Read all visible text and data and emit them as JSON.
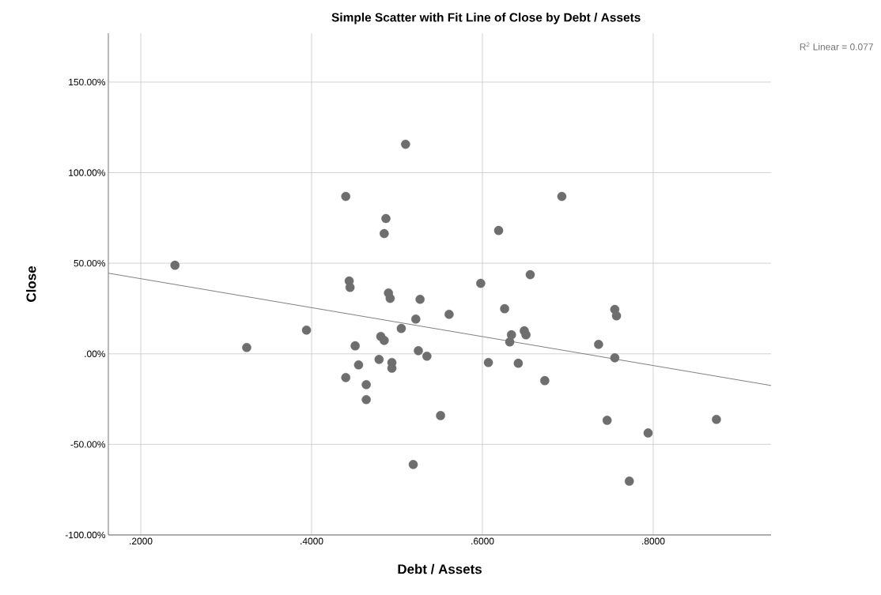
{
  "chart_data": {
    "type": "scatter",
    "title": "Simple Scatter with Fit Line of Close by Debt / Assets",
    "xlabel": "Debt / Assets",
    "ylabel": "Close",
    "annotations": [
      "R$^{2}$ Linear = 0.077"
    ],
    "xlim": [
      0.162,
      0.938
    ],
    "ylim": [
      -100,
      177
    ],
    "xticks": [
      {
        "value": 0.2,
        "label": ".2000"
      },
      {
        "value": 0.4,
        "label": ".4000"
      },
      {
        "value": 0.6,
        "label": ".6000"
      },
      {
        "value": 0.8,
        "label": ".8000"
      }
    ],
    "yticks": [
      {
        "value": -100,
        "label": "-100.00%"
      },
      {
        "value": -50,
        "label": "-50.00%"
      },
      {
        "value": 0,
        "label": ".00%"
      },
      {
        "value": 50,
        "label": "50.00%"
      },
      {
        "value": 100,
        "label": "100.00%"
      },
      {
        "value": 150,
        "label": "150.00%"
      }
    ],
    "grid": true,
    "marker": "circle",
    "series": [
      {
        "color": "#6e6e6e",
        "x": [
          0.24,
          0.324,
          0.394,
          0.44,
          0.444,
          0.445,
          0.451,
          0.44,
          0.455,
          0.464,
          0.464,
          0.479,
          0.481,
          0.485,
          0.485,
          0.487,
          0.49,
          0.492,
          0.494,
          0.494,
          0.505,
          0.51,
          0.522,
          0.525,
          0.527,
          0.535,
          0.519,
          0.551,
          0.561,
          0.598,
          0.607,
          0.619,
          0.626,
          0.632,
          0.634,
          0.642,
          0.649,
          0.651,
          0.656,
          0.673,
          0.693,
          0.736,
          0.746,
          0.755,
          0.755,
          0.757,
          0.772,
          0.794,
          0.874
        ],
        "values": [
          48.9,
          3.5,
          13.1,
          86.9,
          40.2,
          36.7,
          4.4,
          -13.1,
          -6.1,
          -17.0,
          -25.3,
          -3.1,
          9.6,
          7.4,
          66.4,
          74.7,
          33.6,
          30.6,
          -4.8,
          -7.9,
          14.0,
          115.7,
          19.2,
          1.7,
          30.1,
          -1.3,
          -61.1,
          -34.1,
          21.8,
          38.9,
          -4.8,
          68.1,
          24.9,
          6.6,
          10.5,
          -5.2,
          12.7,
          10.5,
          43.7,
          -14.8,
          86.9,
          5.2,
          -36.7,
          24.5,
          -2.2,
          21.0,
          -70.3,
          -43.7,
          -36.2
        ]
      },
      {
        "type": "line",
        "color": "#808080",
        "marker": "none",
        "x": [
          0.162,
          0.938
        ],
        "values": [
          44.5,
          -17.5
        ]
      }
    ]
  }
}
